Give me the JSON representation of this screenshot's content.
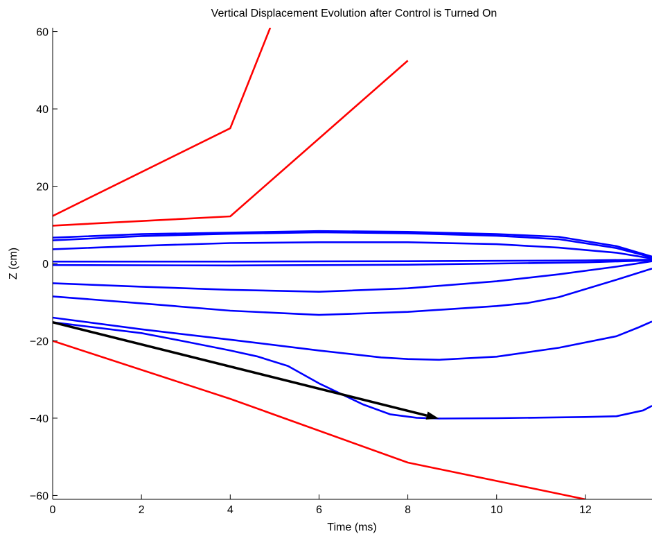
{
  "chart_data": {
    "type": "line",
    "title": "Vertical Displacement Evolution after Control is Turned On",
    "xlabel": "Time (ms)",
    "ylabel": "Z (cm)",
    "xlim": [
      0,
      13.5
    ],
    "ylim": [
      -61,
      61
    ],
    "xticks": [
      0,
      2,
      4,
      6,
      8,
      10,
      12
    ],
    "yticks": [
      -60,
      -40,
      -20,
      0,
      20,
      40,
      60
    ],
    "xtick_labels": [
      "0",
      "2",
      "4",
      "6",
      "8",
      "10",
      "12"
    ],
    "ytick_labels": [
      "−60",
      "−40",
      "−20",
      "0",
      "20",
      "40",
      "60"
    ],
    "grid": false,
    "colors": {
      "unstable": "#ff0000",
      "controlled": "#0000ff",
      "arrow": "#000000"
    },
    "series": [
      {
        "group": "unstable",
        "x": [
          0,
          4,
          4.9
        ],
        "y": [
          12.3,
          35,
          61
        ]
      },
      {
        "group": "unstable",
        "x": [
          0,
          4,
          8
        ],
        "y": [
          9.8,
          12.2,
          52.5
        ]
      },
      {
        "group": "unstable",
        "x": [
          0,
          4,
          8,
          12
        ],
        "y": [
          -20,
          -35,
          -51.5,
          -61
        ]
      },
      {
        "group": "controlled",
        "x": [
          0,
          2,
          4,
          6,
          8,
          10,
          11.4,
          12.7,
          13.5
        ],
        "y": [
          6.7,
          7.6,
          8.0,
          8.4,
          8.2,
          7.6,
          6.9,
          4.5,
          1.8
        ]
      },
      {
        "group": "controlled",
        "x": [
          0,
          2,
          4,
          6,
          8,
          10,
          11.4,
          12.7,
          13.5
        ],
        "y": [
          6.0,
          7.1,
          7.7,
          8.1,
          7.8,
          7.2,
          6.3,
          4.0,
          1.6
        ]
      },
      {
        "group": "controlled",
        "x": [
          0,
          2,
          4,
          6,
          8,
          10,
          11.4,
          12.7,
          13.5
        ],
        "y": [
          3.7,
          4.6,
          5.3,
          5.5,
          5.5,
          5.0,
          4.1,
          2.8,
          1.3
        ]
      },
      {
        "group": "controlled",
        "x": [
          0,
          4,
          8,
          12,
          13.5
        ],
        "y": [
          0.5,
          0.5,
          0.6,
          0.8,
          1.0
        ]
      },
      {
        "group": "controlled",
        "x": [
          0,
          4,
          8,
          12,
          13.5
        ],
        "y": [
          -0.4,
          -0.5,
          -0.3,
          0.3,
          0.8
        ]
      },
      {
        "group": "controlled",
        "x": [
          0,
          2,
          4,
          6,
          8,
          10,
          11.4,
          12.7,
          13.5
        ],
        "y": [
          -5.1,
          -6.0,
          -6.8,
          -7.3,
          -6.4,
          -4.6,
          -2.8,
          -0.8,
          0.6
        ]
      },
      {
        "group": "controlled",
        "x": [
          0,
          2,
          4,
          6,
          8,
          10,
          10.7,
          11.4,
          12.7,
          13.5
        ],
        "y": [
          -8.5,
          -10.3,
          -12.2,
          -13.3,
          -12.5,
          -11.0,
          -10.2,
          -8.7,
          -4.2,
          -1.3
        ]
      },
      {
        "group": "controlled",
        "x": [
          0,
          2,
          4,
          6,
          7.4,
          8,
          8.7,
          10,
          11.4,
          12.7,
          13.2,
          13.5
        ],
        "y": [
          -14.0,
          -17.0,
          -19.7,
          -22.5,
          -24.3,
          -24.7,
          -24.9,
          -24.1,
          -21.8,
          -18.8,
          -16.5,
          -15.0
        ]
      },
      {
        "group": "controlled",
        "x": [
          0,
          2,
          3,
          4,
          4.6,
          5.3,
          6,
          7,
          7.6,
          8.2,
          8.7,
          10,
          12,
          12.7,
          13.3,
          13.5
        ],
        "y": [
          -15.2,
          -18.0,
          -20.2,
          -22.5,
          -24.0,
          -26.5,
          -31.0,
          -36.5,
          -39.0,
          -39.9,
          -40.1,
          -40.0,
          -39.7,
          -39.5,
          -38.0,
          -36.8
        ]
      }
    ],
    "annotations": [
      {
        "type": "arrow",
        "from": [
          0,
          -15.2
        ],
        "to": [
          8.7,
          -40.1
        ]
      }
    ]
  }
}
